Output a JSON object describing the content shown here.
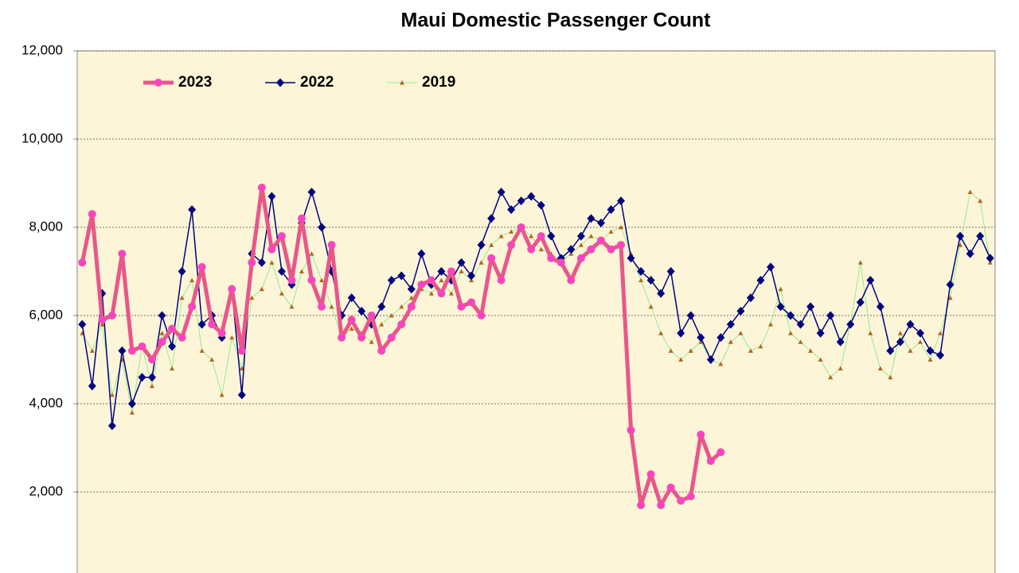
{
  "chart_data": {
    "type": "line",
    "title": "Maui Domestic Passenger Count",
    "ylim": [
      0,
      12000
    ],
    "yticks": [
      {
        "value": 2000,
        "label": "2,000"
      },
      {
        "value": 4000,
        "label": "4,000"
      },
      {
        "value": 6000,
        "label": "6,000"
      },
      {
        "value": 8000,
        "label": "8,000"
      },
      {
        "value": 10000,
        "label": "10,000"
      },
      {
        "value": 12000,
        "label": "12,000"
      }
    ],
    "grid": true,
    "legend": "top-left",
    "series": [
      {
        "name": "2023",
        "color": "#e8578a",
        "marker": "circle",
        "marker_color": "#ff3fcf",
        "values": [
          7200,
          8300,
          5900,
          6000,
          7400,
          5200,
          5300,
          5000,
          5400,
          5700,
          5500,
          6200,
          7100,
          5800,
          5600,
          6600,
          5200,
          7200,
          8900,
          7500,
          7800,
          6800,
          8200,
          6800,
          6200,
          7600,
          5500,
          5900,
          5500,
          6000,
          5200,
          5500,
          5800,
          6200,
          6700,
          6800,
          6500,
          7000,
          6200,
          6300,
          6000,
          7300,
          6800,
          7600,
          8000,
          7500,
          7800,
          7300,
          7200,
          6800,
          7300,
          7500,
          7700,
          7500,
          7600,
          3400,
          1700,
          2400,
          1700,
          2100,
          1800,
          1900,
          3300,
          2700,
          2900,
          null,
          null,
          null,
          null,
          null,
          null,
          null,
          null,
          null,
          null,
          null,
          null,
          null,
          null,
          null,
          null,
          null,
          null,
          null,
          null,
          null,
          null,
          null,
          null,
          null,
          null,
          null
        ]
      },
      {
        "name": "2022",
        "color": "#000080",
        "marker": "diamond",
        "marker_color": "#000080",
        "values": [
          5800,
          4400,
          6500,
          3500,
          5200,
          4000,
          4600,
          4600,
          6000,
          5300,
          7000,
          8400,
          5800,
          6000,
          5500,
          6600,
          4200,
          7400,
          7200,
          8700,
          7000,
          6700,
          8100,
          8800,
          8000,
          7000,
          6000,
          6400,
          6100,
          5800,
          6200,
          6800,
          6900,
          6600,
          7400,
          6700,
          7000,
          6800,
          7200,
          6900,
          7600,
          8200,
          8800,
          8400,
          8600,
          8700,
          8500,
          7800,
          7300,
          7500,
          7800,
          8200,
          8100,
          8400,
          8600,
          7300,
          7000,
          6800,
          6500,
          7000,
          5600,
          6000,
          5500,
          5000,
          5500,
          5800,
          6100,
          6400,
          6800,
          7100,
          6200,
          6000,
          5800,
          6200,
          5600,
          6000,
          5400,
          5800,
          6300,
          6800,
          6200,
          5200,
          5400,
          5800,
          5600,
          5200,
          5100,
          6700,
          7800,
          7400,
          7800,
          7300
        ]
      },
      {
        "name": "2019",
        "color": "#90ee90",
        "marker": "triangle",
        "marker_color": "#b5651d",
        "values": [
          5600,
          5200,
          5800,
          4200,
          5000,
          3800,
          5300,
          4400,
          5600,
          4800,
          6400,
          6800,
          5200,
          5000,
          4200,
          5500,
          4800,
          6400,
          6600,
          7200,
          6500,
          6200,
          7000,
          7400,
          6800,
          6200,
          5500,
          5700,
          5600,
          5400,
          5800,
          6000,
          6200,
          6400,
          6600,
          6500,
          6800,
          6500,
          7000,
          6800,
          7200,
          7600,
          7800,
          7900,
          8000,
          7800,
          7500,
          7400,
          7200,
          7400,
          7600,
          7800,
          7700,
          7900,
          8000,
          7400,
          6800,
          6200,
          5600,
          5200,
          5000,
          5200,
          5400,
          5000,
          4900,
          5400,
          5600,
          5200,
          5300,
          5800,
          6600,
          5600,
          5400,
          5200,
          5000,
          4600,
          4800,
          5800,
          7200,
          5600,
          4800,
          4600,
          5600,
          5200,
          5400,
          5000,
          5600,
          6400,
          7600,
          8800,
          8600,
          7200
        ]
      }
    ]
  }
}
